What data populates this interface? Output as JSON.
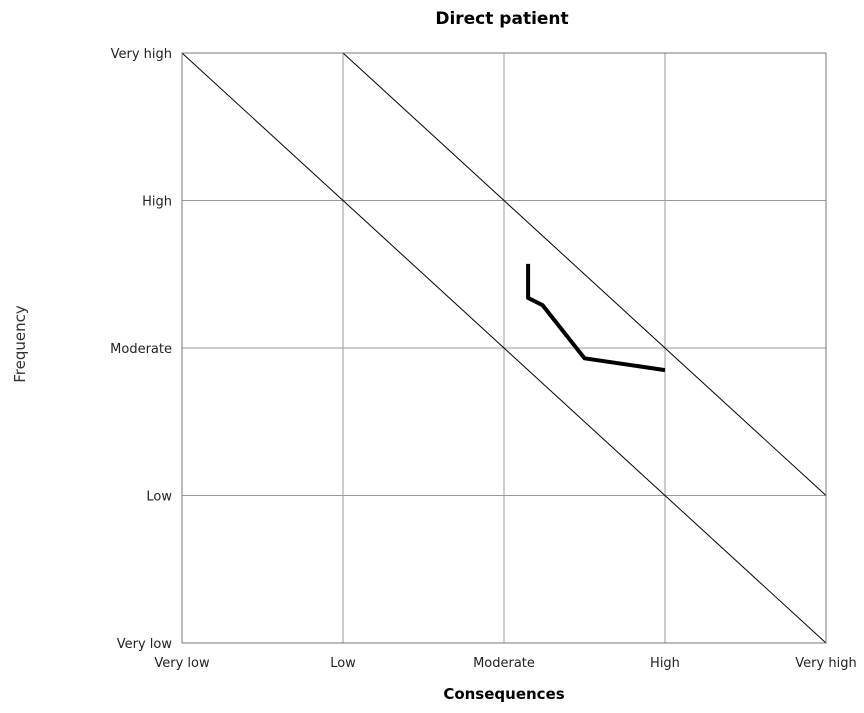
{
  "chart_data": {
    "type": "line",
    "title": "Direct patient",
    "xlabel": "Consequences",
    "ylabel": "Frequency",
    "x_categories": [
      "Very low",
      "Low",
      "Moderate",
      "High",
      "Very high"
    ],
    "y_categories": [
      "Very low",
      "Low",
      "Moderate",
      "High",
      "Very high"
    ],
    "xlim": [
      1,
      5
    ],
    "ylim": [
      1,
      5
    ],
    "grid": true,
    "reference_lines": [
      {
        "points": [
          [
            1,
            5
          ],
          [
            5,
            1
          ]
        ]
      },
      {
        "points": [
          [
            2,
            5
          ],
          [
            5,
            2
          ]
        ]
      }
    ],
    "series": [
      {
        "points": [
          {
            "x": 3.15,
            "y": 3.57
          },
          {
            "x": 3.15,
            "y": 3.34
          },
          {
            "x": 3.24,
            "y": 3.29
          },
          {
            "x": 3.5,
            "y": 2.93
          },
          {
            "x": 4.0,
            "y": 2.85
          }
        ]
      }
    ]
  }
}
